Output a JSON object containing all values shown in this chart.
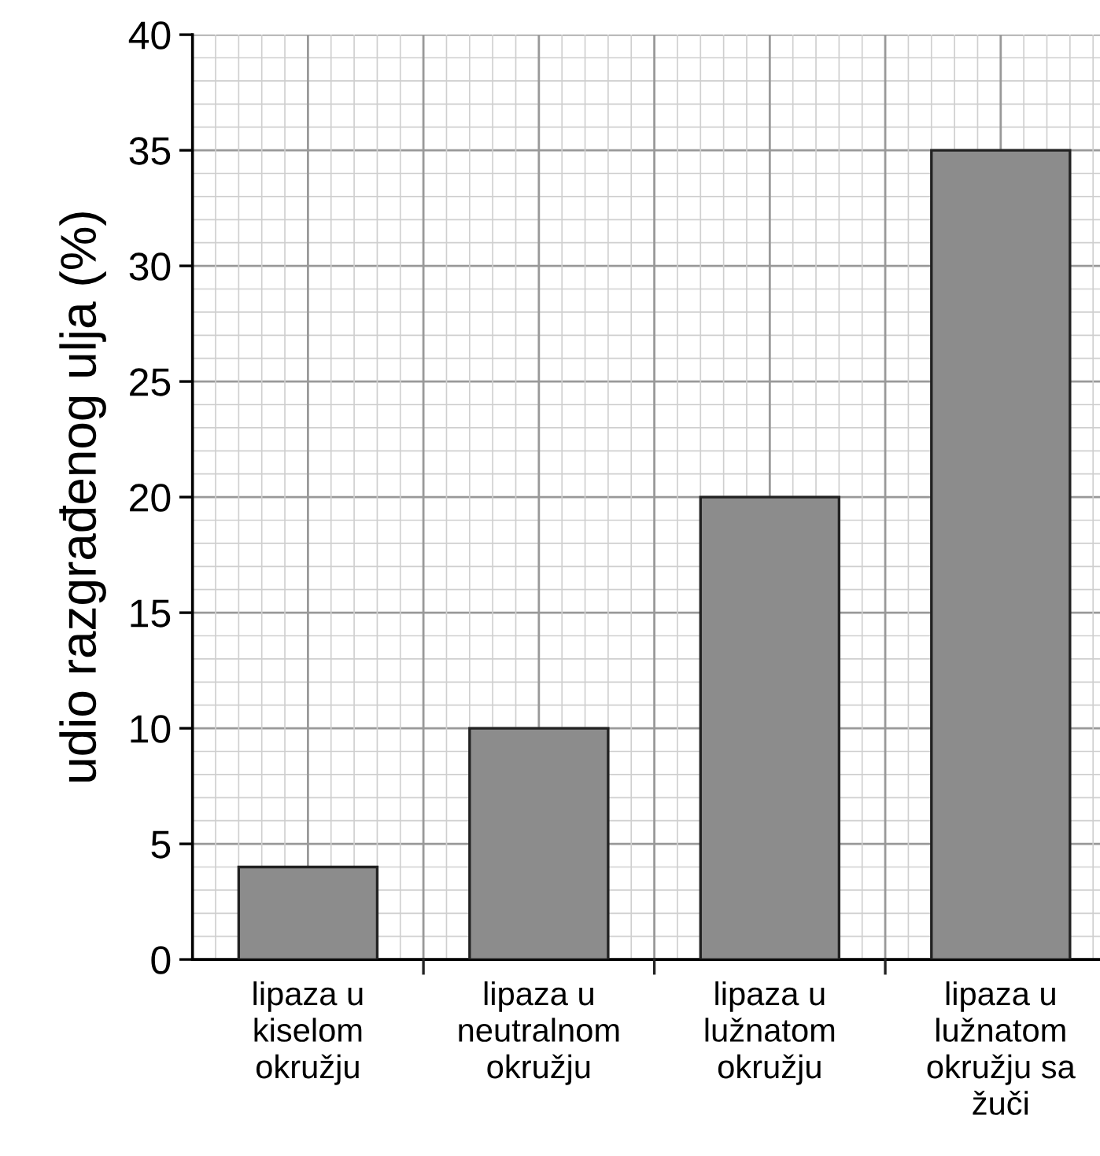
{
  "chart_data": {
    "type": "bar",
    "ylabel": "udio razgrađenog ulja (%)",
    "categories": [
      "lipaza u\nkiselom\nokružju",
      "lipaza u\nneutralnom\nokružju",
      "lipaza u\nlužnatom\nokružju",
      "lipaza u\nlužnatom\nokružju sa\nžuči"
    ],
    "values": [
      4,
      10,
      20,
      35
    ],
    "color": "#8c8c8c",
    "ylim": [
      0,
      40
    ],
    "yticks": [
      0,
      5,
      10,
      15,
      20,
      25,
      30,
      35,
      40
    ],
    "grid": true
  }
}
